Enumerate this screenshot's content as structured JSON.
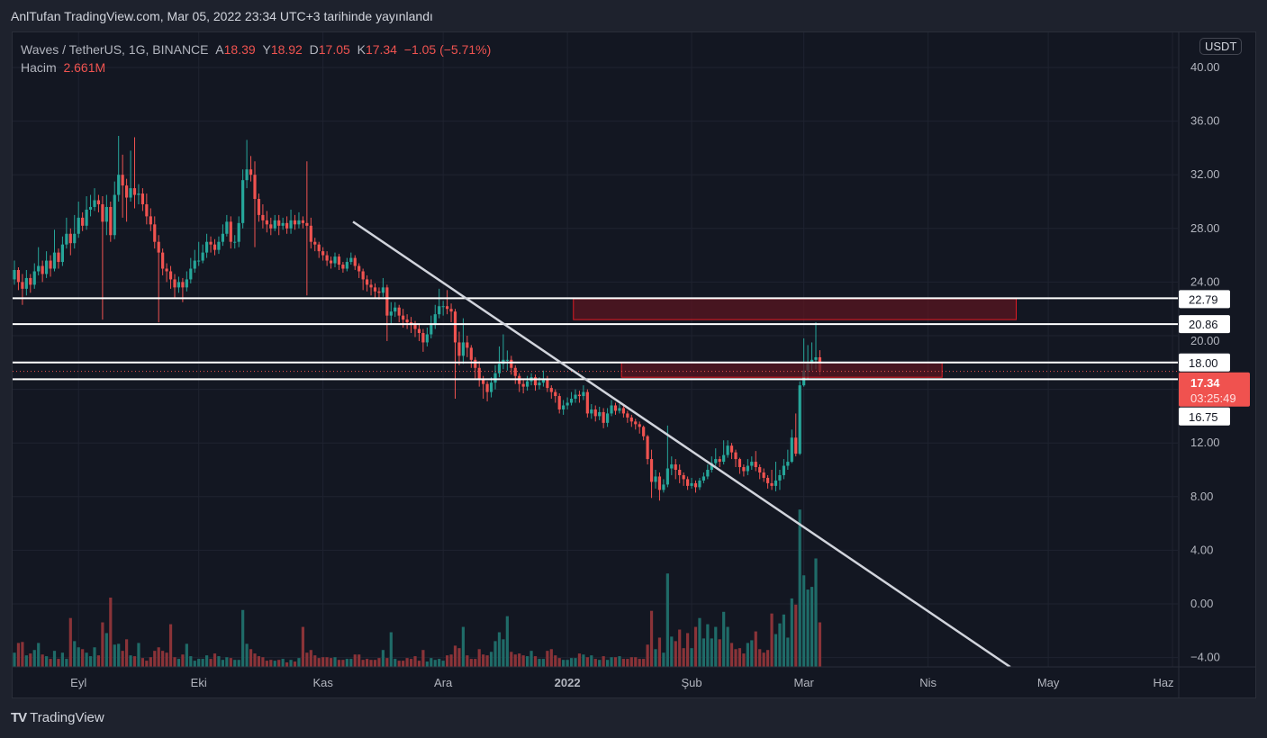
{
  "published_line": "AnlTufan TradingView.com, Mar 05, 2022 23:34 UTC+3 tarihinde yayınlandı",
  "legend": {
    "symbol": "Waves / TetherUS, 1G, BINANCE",
    "open_label": "A",
    "open": "18.39",
    "high_label": "Y",
    "high": "18.92",
    "low_label": "D",
    "low": "17.05",
    "close_label": "K",
    "close": "17.34",
    "change": "−1.05 (−5.71%)",
    "volume_label": "Hacim",
    "volume": "2.661M"
  },
  "currency_button": "USDT",
  "footer_brand": "TradingView",
  "colors": {
    "up": "#26a69a",
    "down": "#ef5350",
    "vol_up": "#1f6b68",
    "vol_down": "#8a3338",
    "line": "#ffffff",
    "zone_fill": "#5a1520",
    "zone_border": "#e01b24",
    "price_tag": "#f0524f"
  },
  "chart_data": {
    "type": "candlestick",
    "title": "Waves / TetherUS, 1G, BINANCE",
    "first_open": 24.2,
    "closes": [
      24.9,
      24.0,
      23.5,
      24.3,
      23.8,
      24.8,
      25.2,
      24.6,
      25.6,
      25.0,
      26.2,
      25.5,
      26.8,
      27.6,
      26.9,
      27.6,
      28.8,
      28.2,
      29.4,
      29.6,
      30.1,
      29.8,
      28.5,
      29.6,
      27.5,
      30.5,
      32.0,
      31.2,
      30.3,
      31.0,
      30.5,
      30.6,
      29.8,
      28.9,
      28.3,
      27.0,
      26.2,
      25.0,
      24.8,
      24.2,
      23.6,
      24.0,
      23.6,
      24.2,
      25.0,
      25.6,
      25.6,
      26.2,
      27.0,
      26.8,
      26.4,
      27.0,
      27.6,
      28.5,
      27.0,
      27.0,
      28.4,
      31.6,
      32.4,
      32.0,
      30.2,
      29.0,
      28.6,
      28.3,
      28.0,
      28.6,
      28.2,
      28.4,
      28.0,
      28.6,
      28.3,
      28.6,
      28.4,
      28.2,
      27.0,
      26.8,
      26.3,
      26.0,
      25.6,
      25.4,
      25.9,
      25.3,
      25.0,
      25.5,
      25.8,
      25.2,
      24.8,
      24.2,
      23.8,
      23.6,
      23.3,
      23.2,
      23.6,
      21.5,
      21.8,
      22.1,
      21.5,
      21.2,
      21.0,
      20.8,
      20.5,
      20.2,
      19.5,
      20.1,
      20.8,
      21.6,
      22.2,
      22.2,
      22.0,
      21.8,
      19.5,
      18.5,
      19.5,
      19.1,
      18.2,
      17.6,
      16.8,
      16.4,
      15.8,
      16.5,
      17.2,
      17.9,
      18.2,
      18.2,
      17.6,
      17.0,
      16.4,
      16.2,
      16.6,
      16.9,
      16.3,
      16.5,
      16.8,
      16.1,
      15.8,
      15.5,
      14.5,
      14.8,
      15.0,
      15.3,
      15.6,
      15.5,
      15.8,
      14.2,
      14.5,
      14.0,
      14.3,
      13.5,
      14.2,
      14.8,
      14.4,
      14.6,
      14.2,
      13.9,
      13.6,
      13.4,
      13.2,
      12.5,
      10.8,
      9.1,
      9.5,
      8.5,
      8.9,
      10.1,
      10.4,
      10.0,
      9.6,
      9.3,
      8.8,
      9.0,
      8.7,
      9.2,
      9.5,
      10.0,
      10.5,
      10.8,
      10.6,
      11.1,
      11.8,
      11.3,
      10.8,
      10.2,
      9.9,
      10.3,
      10.6,
      10.2,
      9.8,
      9.4,
      9.0,
      8.8,
      9.2,
      9.6,
      10.3,
      10.6,
      12.4,
      11.2,
      16.3,
      17.4,
      17.9,
      18.2,
      18.39,
      17.34
    ],
    "highs": [
      25.6,
      25.1,
      24.6,
      24.9,
      24.6,
      25.4,
      26.6,
      25.6,
      26.3,
      26.0,
      27.9,
      26.5,
      27.4,
      28.8,
      28.0,
      29.0,
      30.0,
      29.2,
      30.4,
      30.5,
      31.0,
      30.5,
      30.4,
      30.5,
      30.0,
      31.5,
      34.9,
      33.5,
      31.7,
      33.8,
      34.8,
      31.3,
      31.0,
      30.6,
      29.5,
      28.9,
      27.5,
      26.5,
      25.4,
      25.2,
      24.6,
      24.4,
      24.3,
      24.8,
      25.8,
      26.4,
      27.0,
      26.8,
      27.6,
      27.4,
      27.2,
      27.4,
      28.3,
      29.0,
      28.9,
      27.5,
      28.9,
      32.4,
      34.6,
      33.4,
      33.0,
      30.6,
      29.8,
      29.3,
      28.8,
      29.0,
      29.0,
      28.8,
      28.9,
      29.4,
      29.0,
      29.2,
      28.9,
      33.0,
      28.8,
      27.3,
      27.0,
      26.6,
      26.3,
      25.9,
      26.2,
      26.1,
      25.5,
      25.8,
      26.2,
      26.0,
      25.4,
      25.0,
      24.5,
      24.2,
      23.9,
      23.6,
      24.3,
      23.8,
      22.5,
      22.5,
      22.3,
      22.0,
      21.6,
      21.4,
      21.1,
      20.9,
      20.5,
      20.6,
      21.5,
      22.3,
      23.5,
      22.6,
      23.4,
      22.4,
      22.0,
      20.3,
      21.3,
      20.0,
      19.3,
      18.4,
      18.1,
      17.0,
      16.6,
      16.9,
      17.8,
      19.2,
      20.1,
      18.9,
      18.5,
      17.8,
      17.2,
      16.7,
      17.0,
      17.2,
      17.1,
      16.9,
      17.4,
      17.0,
      16.3,
      16.0,
      15.7,
      15.2,
      15.4,
      15.8,
      16.0,
      15.9,
      16.3,
      16.0,
      14.9,
      14.8,
      14.7,
      14.6,
      14.6,
      15.2,
      15.0,
      14.9,
      14.8,
      14.4,
      14.1,
      13.8,
      13.6,
      13.3,
      12.6,
      11.5,
      10.0,
      9.8,
      9.3,
      13.3,
      11.0,
      10.8,
      10.4,
      9.8,
      9.5,
      9.4,
      9.2,
      9.4,
      9.8,
      10.4,
      11.0,
      11.6,
      11.0,
      12.2,
      12.2,
      12.0,
      11.5,
      10.9,
      10.4,
      10.8,
      11.0,
      11.4,
      10.4,
      10.1,
      9.6,
      10.0,
      10.6,
      10.0,
      10.8,
      11.5,
      13.0,
      14.2,
      16.6,
      19.8,
      19.3,
      19.5,
      21.0,
      18.92
    ],
    "lows": [
      23.8,
      23.4,
      22.3,
      23.0,
      23.2,
      23.5,
      24.5,
      24.0,
      24.3,
      24.4,
      24.8,
      25.0,
      25.2,
      26.5,
      26.0,
      26.5,
      27.3,
      27.8,
      27.9,
      28.9,
      29.3,
      29.2,
      21.2,
      27.5,
      27.0,
      27.2,
      30.0,
      28.8,
      28.5,
      30.0,
      29.5,
      29.8,
      29.3,
      28.3,
      27.8,
      26.5,
      21.0,
      24.5,
      24.0,
      23.5,
      22.8,
      23.2,
      22.5,
      23.3,
      23.9,
      24.7,
      25.2,
      25.4,
      25.8,
      26.2,
      26.0,
      26.1,
      26.7,
      27.4,
      26.5,
      26.5,
      26.6,
      28.0,
      31.0,
      31.5,
      26.6,
      28.5,
      28.0,
      27.7,
      27.5,
      27.8,
      27.5,
      27.9,
      27.6,
      27.6,
      27.9,
      28.0,
      28.0,
      23.0,
      26.5,
      26.3,
      25.8,
      25.6,
      25.2,
      25.0,
      25.1,
      24.9,
      24.7,
      24.8,
      25.3,
      24.9,
      24.3,
      23.4,
      23.3,
      23.0,
      22.8,
      22.7,
      22.9,
      19.6,
      20.8,
      21.4,
      21.0,
      20.6,
      20.5,
      20.2,
      19.9,
      19.6,
      18.8,
      19.2,
      19.8,
      20.5,
      21.3,
      21.5,
      21.6,
      21.0,
      15.3,
      17.8,
      17.9,
      18.4,
      17.6,
      16.8,
      16.2,
      15.3,
      15.1,
      15.4,
      16.0,
      16.9,
      17.5,
      17.4,
      17.1,
      16.4,
      15.8,
      15.7,
      15.9,
      16.3,
      15.9,
      16.0,
      16.2,
      15.8,
      15.3,
      15.0,
      14.2,
      14.1,
      14.5,
      14.8,
      15.0,
      15.0,
      15.2,
      13.9,
      13.8,
      13.6,
      13.7,
      13.1,
      13.2,
      14.0,
      14.1,
      14.2,
      13.9,
      13.5,
      13.2,
      13.0,
      12.7,
      12.2,
      10.4,
      7.9,
      8.6,
      7.7,
      8.3,
      8.7,
      9.6,
      9.3,
      9.0,
      8.8,
      8.5,
      8.6,
      8.3,
      8.5,
      9.0,
      9.3,
      9.8,
      10.3,
      10.2,
      10.4,
      10.9,
      10.8,
      10.2,
      9.7,
      9.5,
      9.6,
      10.0,
      9.9,
      9.3,
      9.1,
      8.6,
      8.5,
      8.4,
      8.5,
      9.3,
      10.0,
      10.5,
      11.0,
      11.1,
      16.2,
      16.7,
      17.4,
      17.5,
      17.05
    ],
    "volumes_m": [
      0.85,
      1.43,
      1.49,
      0.69,
      0.8,
      1.01,
      1.43,
      0.74,
      0.64,
      0.48,
      0.96,
      0.48,
      0.85,
      0.48,
      2.92,
      1.54,
      1.17,
      1.06,
      0.85,
      0.64,
      1.17,
      0.69,
      2.66,
      2.02,
      4.14,
      1.33,
      1.38,
      0.96,
      1.65,
      0.69,
      0.64,
      1.43,
      0.53,
      0.37,
      0.58,
      0.96,
      1.17,
      0.96,
      0.85,
      2.55,
      0.58,
      0.48,
      0.74,
      1.38,
      0.64,
      0.37,
      0.48,
      0.48,
      0.69,
      0.48,
      0.8,
      0.64,
      0.42,
      0.58,
      0.53,
      0.42,
      0.42,
      3.4,
      1.38,
      1.06,
      0.8,
      0.64,
      0.58,
      0.37,
      0.42,
      0.37,
      0.42,
      0.48,
      0.27,
      0.42,
      0.32,
      0.53,
      2.39,
      0.85,
      1.01,
      0.69,
      0.53,
      0.58,
      0.58,
      0.53,
      0.58,
      0.42,
      0.42,
      0.48,
      0.48,
      0.74,
      0.74,
      0.42,
      0.48,
      0.42,
      0.42,
      0.53,
      1.01,
      0.53,
      2.07,
      0.48,
      0.37,
      0.37,
      0.53,
      0.48,
      0.64,
      0.37,
      1.01,
      0.32,
      0.53,
      0.42,
      0.48,
      0.37,
      0.69,
      0.74,
      1.27,
      1.12,
      2.39,
      0.69,
      0.48,
      0.48,
      1.06,
      0.74,
      0.69,
      0.9,
      1.54,
      2.07,
      1.65,
      3.03,
      0.9,
      0.74,
      0.8,
      0.69,
      0.64,
      0.96,
      0.64,
      0.48,
      0.48,
      0.96,
      1.06,
      0.69,
      0.53,
      0.42,
      0.42,
      0.53,
      0.53,
      0.8,
      0.74,
      0.58,
      0.69,
      0.48,
      0.42,
      0.64,
      0.42,
      0.58,
      0.58,
      0.64,
      0.48,
      0.48,
      0.58,
      0.58,
      0.48,
      0.48,
      1.33,
      3.35,
      1.06,
      1.75,
      0.85,
      5.58,
      1.81,
      1.54,
      2.23,
      1.12,
      2.02,
      1.12,
      2.39,
      2.92,
      1.7,
      2.55,
      1.7,
      2.39,
      1.65,
      3.29,
      2.39,
      1.43,
      1.06,
      1.12,
      0.8,
      1.43,
      1.59,
      2.12,
      1.06,
      0.85,
      1.01,
      3.19,
      1.96,
      2.6,
      3.13,
      1.75,
      4.09,
      3.72,
      9.4,
      5.47,
      4.62,
      4.78,
      6.48,
      2.66
    ],
    "y_ticks": [
      {
        "value": 40,
        "label": "40.00"
      },
      {
        "value": 36,
        "label": "36.00"
      },
      {
        "value": 32,
        "label": "32.00"
      },
      {
        "value": 28,
        "label": "28.00"
      },
      {
        "value": 24,
        "label": "24.00"
      },
      {
        "value": 20,
        "label": "20.00"
      },
      {
        "value": 12,
        "label": "12.00"
      },
      {
        "value": 8,
        "label": "8.00"
      },
      {
        "value": 4,
        "label": "4.00"
      },
      {
        "value": 0,
        "label": "0.00"
      },
      {
        "value": -4,
        "label": "−4.00"
      }
    ],
    "ylim": [
      -4.5,
      42
    ],
    "x_ticks": [
      {
        "day": 16,
        "label": "Eyl"
      },
      {
        "day": 46,
        "label": "Eki"
      },
      {
        "day": 77,
        "label": "Kas"
      },
      {
        "day": 107,
        "label": "Ara"
      },
      {
        "day": 138,
        "label": "2022",
        "bold": true
      },
      {
        "day": 169,
        "label": "Şub"
      },
      {
        "day": 197,
        "label": "Mar"
      },
      {
        "day": 228,
        "label": "Nis"
      },
      {
        "day": 258,
        "label": "May"
      },
      {
        "day": 289,
        "label": "Haz"
      }
    ],
    "horizontal_levels": [
      {
        "value": 22.79,
        "label": "22.79"
      },
      {
        "value": 20.86,
        "label": "20.86"
      },
      {
        "value": 18.0,
        "label": "18.00"
      },
      {
        "value": 16.75,
        "label": "16.75"
      }
    ],
    "current_price": {
      "value": 17.34,
      "label": "17.34",
      "countdown": "03:25:49"
    },
    "zones": [
      {
        "from_day": 139.5,
        "to_day": 250,
        "low": 21.2,
        "high": 22.75
      },
      {
        "from_day": 151.5,
        "to_day": 231.5,
        "low": 16.9,
        "high": 18.0
      }
    ],
    "trendline": {
      "from": {
        "day": 84.5,
        "price": 28.5
      },
      "to": {
        "day": 248.5,
        "price": -4.7
      }
    }
  }
}
